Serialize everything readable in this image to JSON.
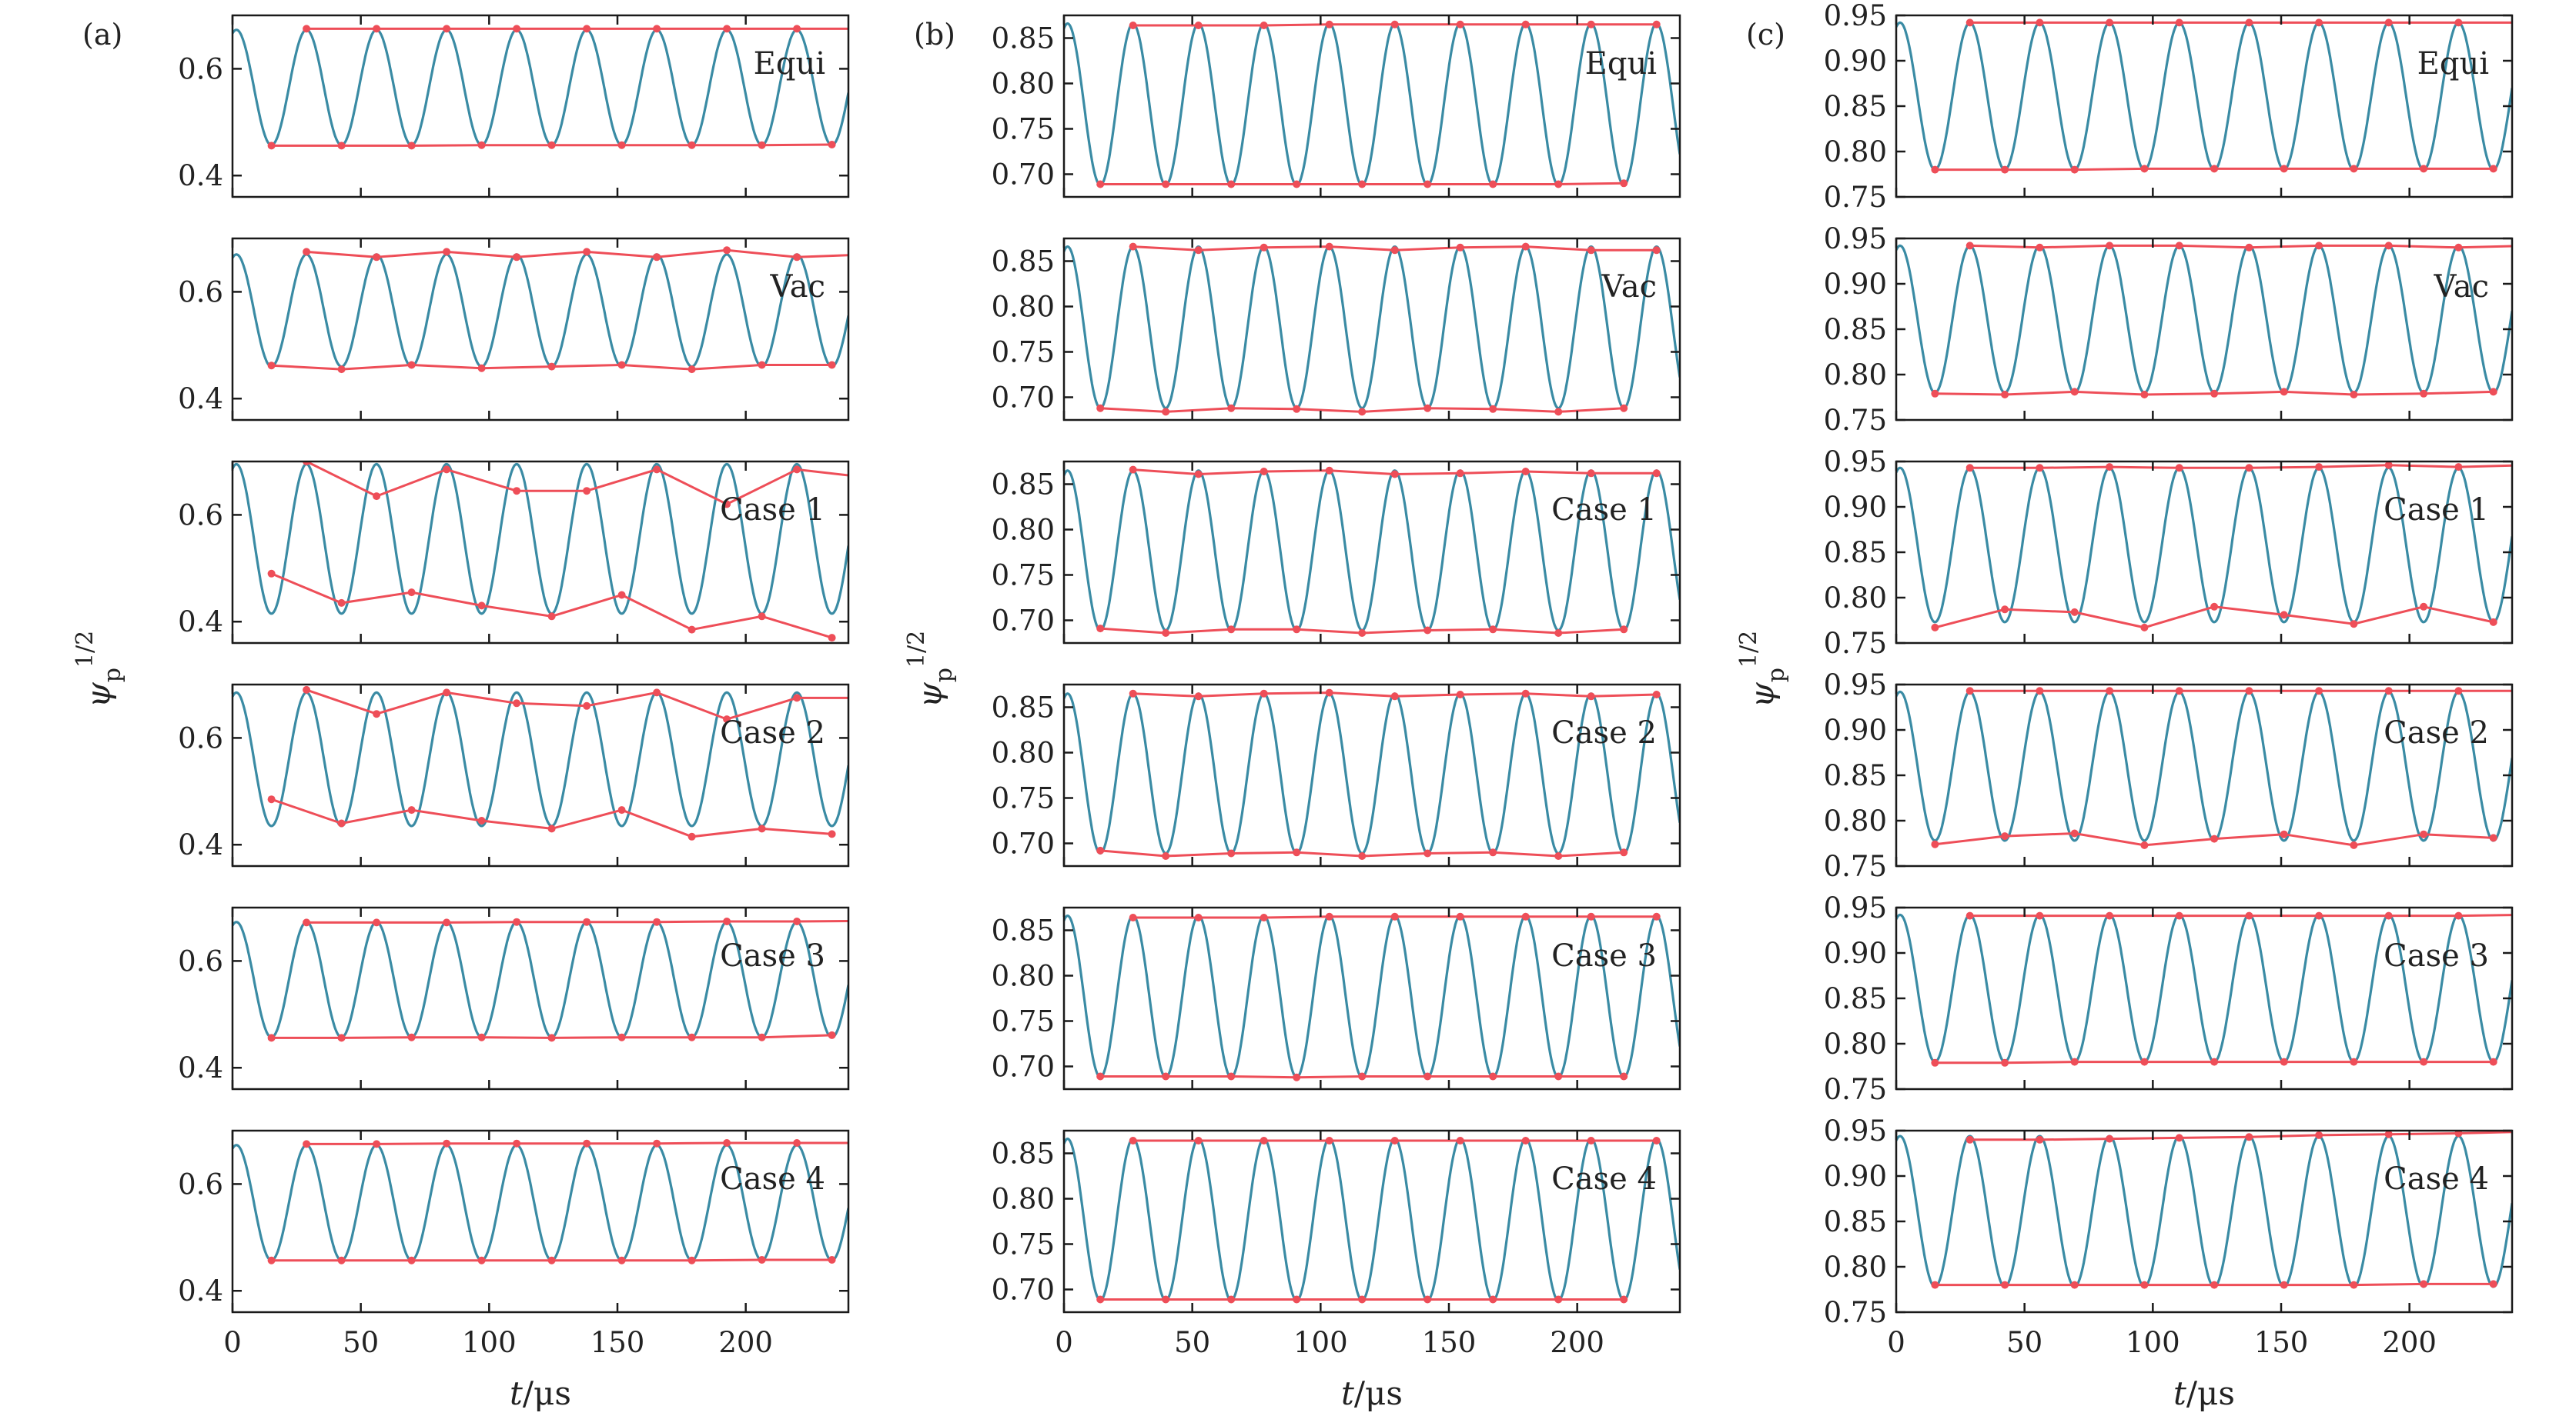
{
  "chart_data": [
    {
      "type": "line",
      "panel_label": "(a)",
      "xlabel": "t/μs",
      "ylabel": "ψp^1/2",
      "xlim": [
        0,
        240
      ],
      "x_ticks": [
        "0",
        "50",
        "100",
        "150",
        "200"
      ],
      "ylim": [
        0.36,
        0.7
      ],
      "y_ticks": [
        "0.4",
        "0.6"
      ],
      "y_tick_values": [
        0.4,
        0.6
      ],
      "period_us": 27.3,
      "rows": [
        {
          "label": "Equi",
          "mean": 0.565,
          "amp": 0.108,
          "maxima": [
            0.675,
            0.675,
            0.675,
            0.675,
            0.675,
            0.675,
            0.675,
            0.675,
            0.675
          ],
          "minima": [
            0.456,
            0.456,
            0.456,
            0.457,
            0.457,
            0.457,
            0.457,
            0.457,
            0.458
          ]
        },
        {
          "label": "Vac",
          "mean": 0.565,
          "amp": 0.105,
          "maxima": [
            0.675,
            0.665,
            0.675,
            0.665,
            0.675,
            0.665,
            0.678,
            0.665,
            0.67
          ],
          "minima": [
            0.462,
            0.455,
            0.463,
            0.457,
            0.46,
            0.463,
            0.455,
            0.463,
            0.463
          ]
        },
        {
          "label": "Case 1",
          "mean": 0.555,
          "amp": 0.14,
          "maxima": [
            0.7,
            0.635,
            0.685,
            0.645,
            0.645,
            0.685,
            0.62,
            0.685,
            0.67
          ],
          "minima": [
            0.49,
            0.435,
            0.455,
            0.43,
            0.41,
            0.45,
            0.385,
            0.41,
            0.37
          ]
        },
        {
          "label": "Case 2",
          "mean": 0.56,
          "amp": 0.125,
          "maxima": [
            0.69,
            0.645,
            0.685,
            0.665,
            0.66,
            0.685,
            0.635,
            0.675,
            0.675
          ],
          "minima": [
            0.485,
            0.44,
            0.465,
            0.445,
            0.43,
            0.465,
            0.415,
            0.43,
            0.42
          ]
        },
        {
          "label": "Case 3",
          "mean": 0.565,
          "amp": 0.108,
          "maxima": [
            0.672,
            0.672,
            0.672,
            0.673,
            0.673,
            0.673,
            0.674,
            0.674,
            0.675
          ],
          "minima": [
            0.456,
            0.456,
            0.457,
            0.457,
            0.456,
            0.457,
            0.457,
            0.457,
            0.461
          ]
        },
        {
          "label": "Case 4",
          "mean": 0.565,
          "amp": 0.108,
          "maxima": [
            0.675,
            0.675,
            0.676,
            0.676,
            0.676,
            0.676,
            0.677,
            0.677,
            0.677
          ],
          "minima": [
            0.457,
            0.457,
            0.457,
            0.457,
            0.457,
            0.457,
            0.457,
            0.458,
            0.458
          ]
        }
      ]
    },
    {
      "type": "line",
      "panel_label": "(b)",
      "xlabel": "t/μs",
      "ylabel": "ψp^1/2",
      "xlim": [
        0,
        240
      ],
      "x_ticks": [
        "0",
        "50",
        "100",
        "150",
        "200"
      ],
      "ylim": [
        0.675,
        0.875
      ],
      "y_ticks": [
        "0.70",
        "0.75",
        "0.80",
        "0.85"
      ],
      "y_tick_values": [
        0.7,
        0.75,
        0.8,
        0.85
      ],
      "period_us": 25.5,
      "rows": [
        {
          "label": "Equi",
          "mean": 0.777,
          "amp": 0.089,
          "maxima": [
            0.864,
            0.864,
            0.864,
            0.865,
            0.865,
            0.865,
            0.865,
            0.865,
            0.865
          ],
          "minima": [
            0.689,
            0.689,
            0.689,
            0.689,
            0.689,
            0.689,
            0.689,
            0.689,
            0.69
          ]
        },
        {
          "label": "Vac",
          "mean": 0.777,
          "amp": 0.089,
          "maxima": [
            0.866,
            0.862,
            0.865,
            0.866,
            0.862,
            0.865,
            0.866,
            0.862,
            0.862
          ],
          "minima": [
            0.688,
            0.684,
            0.688,
            0.687,
            0.684,
            0.688,
            0.687,
            0.684,
            0.688
          ]
        },
        {
          "label": "Case 1",
          "mean": 0.777,
          "amp": 0.088,
          "maxima": [
            0.866,
            0.861,
            0.864,
            0.865,
            0.861,
            0.862,
            0.864,
            0.862,
            0.862
          ],
          "minima": [
            0.691,
            0.686,
            0.69,
            0.69,
            0.686,
            0.689,
            0.69,
            0.686,
            0.69
          ]
        },
        {
          "label": "Case 2",
          "mean": 0.777,
          "amp": 0.088,
          "maxima": [
            0.865,
            0.862,
            0.865,
            0.866,
            0.862,
            0.864,
            0.865,
            0.862,
            0.864
          ],
          "minima": [
            0.692,
            0.686,
            0.689,
            0.69,
            0.686,
            0.689,
            0.69,
            0.686,
            0.69
          ]
        },
        {
          "label": "Case 3",
          "mean": 0.777,
          "amp": 0.089,
          "maxima": [
            0.864,
            0.864,
            0.864,
            0.865,
            0.865,
            0.865,
            0.865,
            0.865,
            0.865
          ],
          "minima": [
            0.689,
            0.689,
            0.689,
            0.688,
            0.689,
            0.689,
            0.689,
            0.689,
            0.689
          ]
        },
        {
          "label": "Case 4",
          "mean": 0.777,
          "amp": 0.089,
          "maxima": [
            0.864,
            0.864,
            0.864,
            0.864,
            0.864,
            0.864,
            0.864,
            0.864,
            0.864
          ],
          "minima": [
            0.689,
            0.689,
            0.689,
            0.689,
            0.689,
            0.689,
            0.689,
            0.689,
            0.689
          ]
        }
      ]
    },
    {
      "type": "line",
      "panel_label": "(c)",
      "xlabel": "t/μs",
      "ylabel": "ψp^1/2",
      "xlim": [
        0,
        240
      ],
      "x_ticks": [
        "0",
        "50",
        "100",
        "150",
        "200"
      ],
      "ylim": [
        0.75,
        0.95
      ],
      "y_ticks": [
        "0.75",
        "0.80",
        "0.85",
        "0.90",
        "0.95"
      ],
      "y_tick_values": [
        0.75,
        0.8,
        0.85,
        0.9,
        0.95
      ],
      "period_us": 27.2,
      "rows": [
        {
          "label": "Equi",
          "mean": 0.861,
          "amp": 0.081,
          "maxima": [
            0.942,
            0.942,
            0.942,
            0.942,
            0.942,
            0.942,
            0.942,
            0.942,
            0.942
          ],
          "minima": [
            0.78,
            0.78,
            0.78,
            0.781,
            0.781,
            0.781,
            0.781,
            0.781,
            0.781
          ]
        },
        {
          "label": "Vac",
          "mean": 0.861,
          "amp": 0.081,
          "maxima": [
            0.942,
            0.94,
            0.942,
            0.942,
            0.94,
            0.942,
            0.942,
            0.94,
            0.942
          ],
          "minima": [
            0.779,
            0.778,
            0.781,
            0.778,
            0.779,
            0.781,
            0.778,
            0.779,
            0.781
          ]
        },
        {
          "label": "Case 1",
          "mean": 0.858,
          "amp": 0.085,
          "maxima": [
            0.943,
            0.943,
            0.944,
            0.943,
            0.943,
            0.944,
            0.946,
            0.944,
            0.946
          ],
          "minima": [
            0.767,
            0.787,
            0.784,
            0.767,
            0.79,
            0.781,
            0.771,
            0.79,
            0.773
          ]
        },
        {
          "label": "Case 2",
          "mean": 0.86,
          "amp": 0.082,
          "maxima": [
            0.943,
            0.943,
            0.943,
            0.943,
            0.943,
            0.943,
            0.943,
            0.943,
            0.943
          ],
          "minima": [
            0.774,
            0.783,
            0.786,
            0.773,
            0.78,
            0.785,
            0.773,
            0.785,
            0.781
          ]
        },
        {
          "label": "Case 3",
          "mean": 0.861,
          "amp": 0.081,
          "maxima": [
            0.941,
            0.941,
            0.941,
            0.941,
            0.941,
            0.941,
            0.941,
            0.941,
            0.942
          ],
          "minima": [
            0.779,
            0.779,
            0.78,
            0.78,
            0.78,
            0.78,
            0.78,
            0.78,
            0.78
          ]
        },
        {
          "label": "Case 4",
          "mean": 0.861,
          "amp": 0.083,
          "maxima": [
            0.94,
            0.94,
            0.941,
            0.942,
            0.943,
            0.945,
            0.946,
            0.947,
            0.949
          ],
          "minima": [
            0.78,
            0.78,
            0.78,
            0.78,
            0.78,
            0.78,
            0.78,
            0.781,
            0.781
          ]
        }
      ]
    }
  ],
  "colors": {
    "curve": "#3a8ba4",
    "envelope": "#ee4e58",
    "axes": "#1a1a1a"
  }
}
